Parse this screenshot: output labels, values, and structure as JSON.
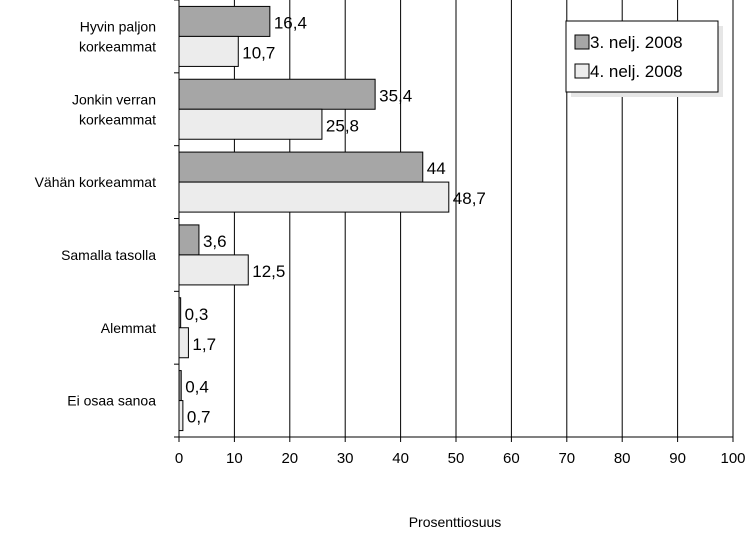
{
  "chart_data": {
    "type": "bar",
    "orientation": "horizontal",
    "categories": [
      [
        "Hyvin paljon",
        "korkeammat"
      ],
      [
        "Jonkin verran",
        "korkeammat"
      ],
      [
        "Vähän korkeammat"
      ],
      [
        "Samalla tasolla"
      ],
      [
        "Alemmat"
      ],
      [
        "Ei osaa sanoa"
      ]
    ],
    "series": [
      {
        "name": "3. nelj. 2008",
        "values": [
          16.4,
          35.4,
          44,
          3.6,
          0.3,
          0.4
        ],
        "labels": [
          "16,4",
          "35,4",
          "44",
          "3,6",
          "0,3",
          "0,4"
        ],
        "color": "#a6a6a6"
      },
      {
        "name": "4. nelj. 2008",
        "values": [
          10.7,
          25.8,
          48.7,
          12.5,
          1.7,
          0.7
        ],
        "labels": [
          "10,7",
          "25,8",
          "48,7",
          "12,5",
          "1,7",
          "0,7"
        ],
        "color": "#ececec"
      }
    ],
    "xlim": [
      0,
      100
    ],
    "xticks": [
      0,
      10,
      20,
      30,
      40,
      50,
      60,
      70,
      80,
      90,
      100
    ],
    "xlabel": "Prosenttiosuus",
    "ylabel": "",
    "grid": "vertical",
    "legend": "top-right"
  }
}
